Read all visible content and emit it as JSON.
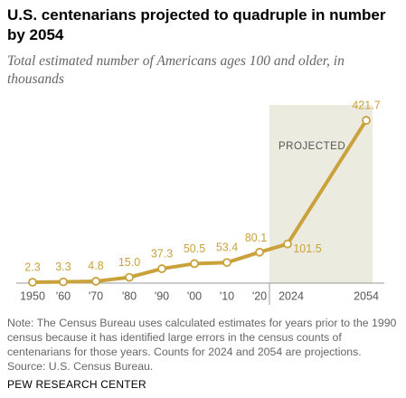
{
  "chart_data": {
    "type": "line",
    "title": "U.S. centenarians projected to quadruple in number by 2054",
    "subtitle": "Total estimated number of Americans ages 100 and older, in thousands",
    "categories": [
      "1950",
      "'60",
      "'70",
      "'80",
      "'90",
      "'00",
      "'10",
      "'20",
      "2024",
      "2054"
    ],
    "values": [
      2.3,
      3.3,
      4.8,
      15.0,
      37.3,
      50.5,
      53.4,
      80.1,
      101.5,
      421.7
    ],
    "value_labels": [
      "2.3",
      "3.3",
      "4.8",
      "15.0",
      "37.3",
      "50.5",
      "53.4",
      "80.1",
      "101.5",
      "421.7"
    ],
    "color": "#c9a23b",
    "ylim": [
      0,
      450
    ],
    "annotation": "PROJECTED",
    "note": "Note: The Census Bureau uses calculated estimates for years prior to the 1990 census because it has identified large errors in the census counts of centenarians for those years. Counts for 2024 and 2054 are projections.",
    "source": "Source: U.S. Census Bureau.",
    "brand": "PEW RESEARCH CENTER"
  }
}
